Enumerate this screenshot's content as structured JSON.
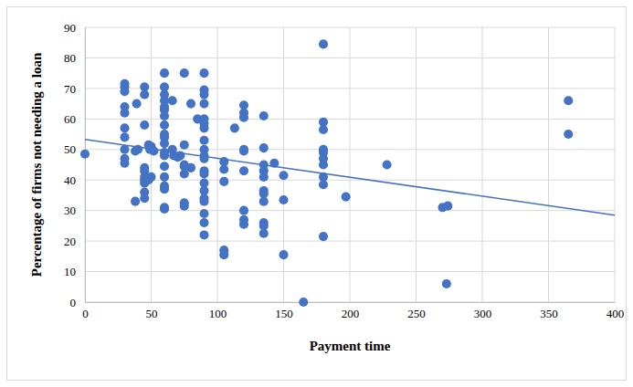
{
  "chart_data": {
    "type": "scatter",
    "x_label": "Payment time",
    "y_label": "Percentage of firms not needing a loan",
    "xlim": [
      0,
      400
    ],
    "xticks": [
      0,
      50,
      100,
      150,
      200,
      250,
      300,
      350,
      400
    ],
    "ylim": [
      0,
      90
    ],
    "yticks": [
      0,
      10,
      20,
      30,
      40,
      50,
      60,
      70,
      80,
      90
    ],
    "grid": true,
    "series": [
      {
        "type": "scatter",
        "marker": "circle",
        "color": "#4472c4",
        "x": [
          0,
          30,
          30,
          30,
          30,
          30,
          30,
          30,
          30,
          30,
          30,
          38,
          38,
          39,
          40,
          45,
          45,
          45,
          45,
          45,
          45,
          45,
          45,
          45,
          45,
          48,
          50,
          49,
          52,
          50,
          48,
          60,
          60,
          60,
          60,
          60,
          60,
          60,
          60,
          60,
          60,
          60,
          60,
          60,
          60,
          60,
          60,
          60,
          60,
          60,
          66,
          66,
          67,
          70,
          72,
          75,
          75,
          75,
          75,
          75,
          75,
          75,
          80,
          80,
          85,
          90,
          90,
          90,
          90,
          90,
          90,
          90,
          90,
          90,
          90,
          90,
          90,
          90,
          90,
          90,
          90,
          90,
          90,
          90,
          90,
          105,
          105,
          105,
          105,
          105,
          113,
          120,
          120,
          120,
          120,
          120,
          120,
          120,
          120,
          120,
          135,
          135,
          135,
          135,
          135,
          135,
          135,
          135,
          135,
          135,
          135,
          143,
          150,
          150,
          150,
          165,
          180,
          180,
          180,
          180,
          180,
          180,
          180,
          180,
          180,
          180,
          197,
          228,
          270,
          274,
          273,
          365,
          365
        ],
        "values": [
          48.5,
          71.5,
          70.5,
          69,
          64,
          62,
          57,
          54,
          50,
          47,
          45.5,
          33,
          49.5,
          65,
          50,
          70.5,
          68,
          58,
          44,
          43,
          41,
          40,
          39,
          36,
          34,
          51.5,
          51,
          50,
          49.5,
          41,
          40,
          75,
          70.5,
          68,
          66,
          64,
          63,
          61,
          58,
          55,
          54,
          52,
          49,
          48,
          44.5,
          41,
          38,
          37,
          31,
          30.5,
          66,
          50,
          48,
          47.5,
          48,
          75,
          51.5,
          45,
          44.5,
          42,
          32.5,
          31.5,
          65,
          44,
          60,
          75,
          69.5,
          68,
          65,
          60,
          58.5,
          57,
          53,
          50,
          48,
          47,
          43,
          42,
          39,
          36.5,
          34,
          33,
          29,
          26,
          22,
          46,
          43.5,
          39.5,
          17,
          15.5,
          57,
          64.5,
          62,
          60.5,
          50,
          49.5,
          43,
          30,
          27,
          25.5,
          61,
          50.5,
          45,
          43,
          41,
          36.5,
          35.5,
          33,
          26,
          25,
          22.5,
          45.5,
          41.5,
          33.5,
          15.5,
          0,
          84.5,
          59,
          56.5,
          50,
          49,
          47,
          45,
          41,
          38.5,
          21.5,
          34.5,
          45,
          31,
          31.5,
          6,
          66,
          55
        ]
      },
      {
        "type": "line",
        "line_style": "solid",
        "color": "#4472c4",
        "x": [
          0,
          400
        ],
        "values": [
          53.3,
          28.5
        ]
      }
    ]
  }
}
